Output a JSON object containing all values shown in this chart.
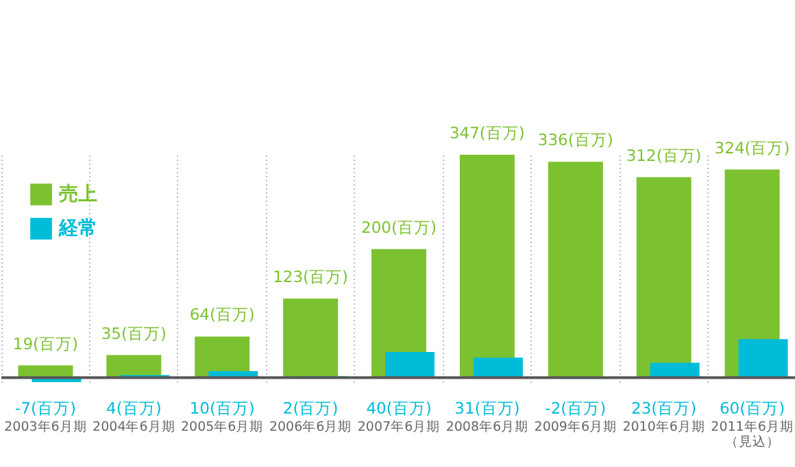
{
  "chart_data": {
    "type": "bar",
    "categories": [
      "2003年6月期",
      "2004年6月期",
      "2005年6月期",
      "2006年6月期",
      "2007年6月期",
      "2008年6月期",
      "2009年6月期",
      "2010年6月期",
      "2011年6月期（見込）"
    ],
    "series": [
      {
        "name": "売上",
        "color": "#7cc230",
        "values": [
          19,
          35,
          64,
          123,
          200,
          347,
          336,
          312,
          324
        ],
        "value_labels": [
          "19(百万)",
          "35(百万)",
          "64(百万)",
          "123(百万)",
          "200(百万)",
          "347(百万)",
          "336(百万)",
          "312(百万)",
          "324(百万)"
        ]
      },
      {
        "name": "経常",
        "color": "#00bcd9",
        "values": [
          -7,
          4,
          10,
          2,
          40,
          31,
          -2,
          23,
          60
        ],
        "value_labels": [
          "-7(百万)",
          "4(百万)",
          "10(百万)",
          "2(百万)",
          "40(百万)",
          "31(百万)",
          "-2(百万)",
          "23(百万)",
          "60(百万)"
        ]
      }
    ],
    "grid": "x",
    "legend": "top left"
  }
}
